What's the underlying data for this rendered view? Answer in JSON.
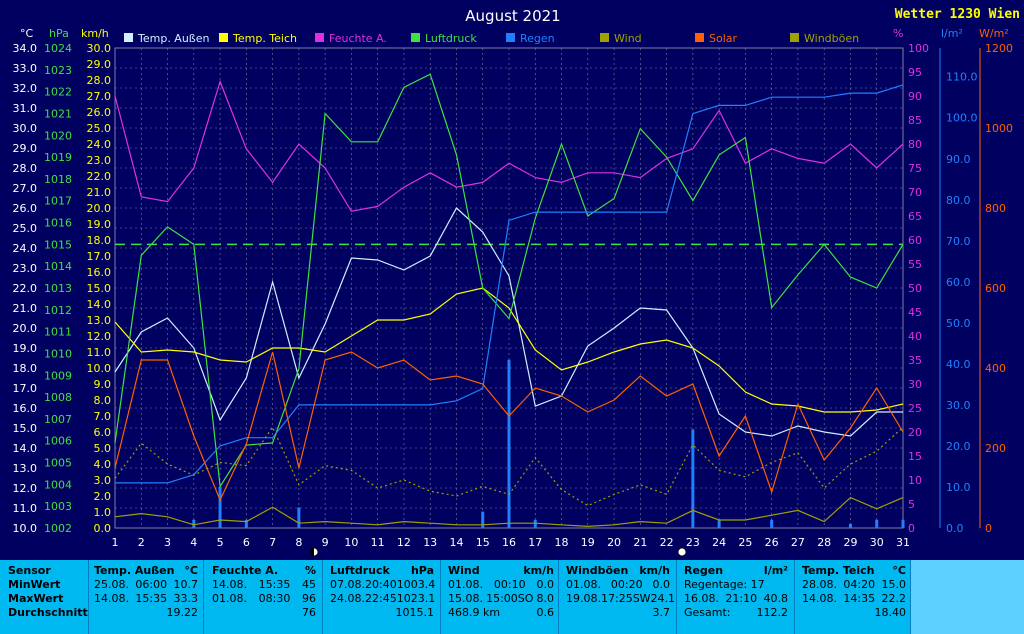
{
  "title": "August 2021",
  "station": "Wetter 1230 Wien",
  "units": {
    "temp": "°C",
    "press": "hPa",
    "wind": "km/h",
    "hum": "%",
    "rain": "l/m²",
    "solar": "W/m²"
  },
  "legend": [
    {
      "label": "Temp. Außen",
      "color": "#D0F0FF"
    },
    {
      "label": "Temp. Teich",
      "color": "#FFFF00"
    },
    {
      "label": "Feuchte A.",
      "color": "#E030E0"
    },
    {
      "label": "Luftdruck",
      "color": "#40E040"
    },
    {
      "label": "Regen",
      "color": "#2080FF"
    },
    {
      "label": "Wind",
      "color": "#A0A000"
    },
    {
      "label": "Solar",
      "color": "#FF6000"
    },
    {
      "label": "Windböen",
      "color": "#A0A000"
    }
  ],
  "chart_data": {
    "type": "line",
    "x": [
      1,
      2,
      3,
      4,
      5,
      6,
      7,
      8,
      9,
      10,
      11,
      12,
      13,
      14,
      15,
      16,
      17,
      18,
      19,
      20,
      21,
      22,
      23,
      24,
      25,
      26,
      27,
      28,
      29,
      30,
      31
    ],
    "axes": {
      "temp": {
        "min": 10.0,
        "max": 34.0,
        "step": 1.0,
        "decimals": 1
      },
      "press": {
        "min": 1002,
        "max": 1024,
        "step": 1
      },
      "wind": {
        "min": 0.0,
        "max": 30.0,
        "step": 1.0,
        "decimals": 1
      },
      "hum": {
        "min": 0,
        "max": 100,
        "step": 5
      },
      "rain": {
        "min": 0.0,
        "max": 110.0,
        "step": 10,
        "decimals": 1,
        "span": 117
      },
      "solar": {
        "min": 0,
        "max": 1200,
        "step": 200
      }
    },
    "reference_line": {
      "axis": "press",
      "value": 1015
    },
    "series": [
      {
        "name": "Temp. Außen",
        "axis": "temp",
        "color": "#D0F0FF",
        "values": [
          17.8,
          19.8,
          20.5,
          19.0,
          15.4,
          17.5,
          22.3,
          17.5,
          20.2,
          23.5,
          23.4,
          22.9,
          23.6,
          26.0,
          24.8,
          22.6,
          16.1,
          16.6,
          19.1,
          20.0,
          21.0,
          20.9,
          19.0,
          15.7,
          14.8,
          14.6,
          15.1,
          14.8,
          14.6,
          15.8,
          15.8
        ]
      },
      {
        "name": "Temp. Teich",
        "axis": "temp",
        "color": "#FFFF00",
        "values": [
          20.3,
          18.8,
          18.9,
          18.8,
          18.4,
          18.3,
          19.0,
          19.0,
          18.8,
          19.6,
          20.4,
          20.4,
          20.7,
          21.7,
          22.0,
          21.0,
          18.9,
          17.9,
          18.3,
          18.8,
          19.2,
          19.4,
          19.0,
          18.1,
          16.8,
          16.2,
          16.1,
          15.8,
          15.8,
          15.9,
          16.2
        ]
      },
      {
        "name": "Feuchte A.",
        "axis": "hum",
        "color": "#E030E0",
        "values": [
          90,
          69,
          68,
          75,
          93,
          79,
          72,
          80,
          75,
          66,
          67,
          71,
          74,
          71,
          72,
          76,
          73,
          72,
          74,
          74,
          73,
          77,
          79,
          87,
          76,
          79,
          77,
          76,
          80,
          75,
          80
        ]
      },
      {
        "name": "Luftdruck",
        "axis": "press",
        "color": "#40E040",
        "values": [
          1005.9,
          1014.5,
          1015.8,
          1015.0,
          1003.9,
          1005.8,
          1005.9,
          1009.3,
          1021.0,
          1019.7,
          1019.7,
          1022.2,
          1022.8,
          1019.1,
          1013.0,
          1011.6,
          1016.2,
          1019.6,
          1016.3,
          1017.1,
          1020.3,
          1019.0,
          1017.0,
          1019.1,
          1019.9,
          1012.1,
          1013.6,
          1015.0,
          1013.5,
          1013.0,
          1015.0
        ]
      },
      {
        "name": "Regen",
        "axis": "rain",
        "color": "#2080FF",
        "values": [
          11,
          11,
          11,
          13,
          20,
          22,
          22,
          30,
          30,
          30,
          30,
          30,
          30,
          31,
          34,
          75,
          77,
          77,
          77,
          77,
          77,
          77,
          101,
          103,
          103,
          105,
          105,
          105,
          106,
          106,
          108
        ]
      },
      {
        "name": "Solar",
        "axis": "solar",
        "color": "#FF6000",
        "values": [
          150,
          420,
          420,
          230,
          70,
          210,
          440,
          150,
          420,
          440,
          400,
          420,
          370,
          380,
          360,
          280,
          350,
          330,
          290,
          320,
          380,
          330,
          360,
          180,
          280,
          90,
          310,
          170,
          250,
          350,
          240
        ]
      },
      {
        "name": "Wind",
        "axis": "wind",
        "color": "#A0A000",
        "values": [
          0.7,
          0.9,
          0.7,
          0.2,
          0.5,
          0.4,
          1.3,
          0.3,
          0.4,
          0.3,
          0.2,
          0.4,
          0.3,
          0.2,
          0.2,
          0.3,
          0.3,
          0.2,
          0.1,
          0.2,
          0.4,
          0.3,
          1.1,
          0.5,
          0.5,
          0.8,
          1.1,
          0.4,
          1.9,
          1.2,
          1.9
        ]
      },
      {
        "name": "Windböen",
        "axis": "wind",
        "color": "#A0A000",
        "dashed": true,
        "values": [
          3.1,
          5.3,
          4.0,
          3.3,
          4.1,
          3.9,
          6.3,
          2.7,
          3.9,
          3.6,
          2.5,
          3.0,
          2.3,
          2.0,
          2.6,
          2.1,
          4.4,
          2.4,
          1.4,
          2.1,
          2.7,
          2.1,
          5.2,
          3.6,
          3.2,
          4.1,
          4.7,
          2.5,
          4.0,
          4.8,
          6.3
        ]
      }
    ],
    "rain_bars": {
      "axis": "rain",
      "values": [
        0,
        0,
        0,
        2,
        10,
        2,
        0,
        5,
        0,
        0,
        0,
        0,
        0,
        0,
        4,
        41,
        2,
        0,
        0,
        0,
        0,
        0,
        24,
        2,
        0,
        2,
        0,
        0,
        1,
        2,
        2
      ]
    }
  },
  "table": {
    "labels": {
      "sensor": "Sensor",
      "min": "MinWert",
      "max": "MaxWert",
      "avg": "Durchschnitt"
    },
    "temp_aussen": {
      "title": "Temp. Außen",
      "unit": "°C",
      "min_date": "25.08.",
      "min_time": "06:00",
      "min_val": "10.7",
      "max_date": "14.08.",
      "max_time": "15:35",
      "max_val": "33.3",
      "avg": "19.22"
    },
    "feuchte": {
      "title": "Feuchte A.",
      "unit": "%",
      "min_date": "14.08.",
      "min_time": "15:35",
      "min_val": "45",
      "max_date": "01.08.",
      "max_time": "08:30",
      "max_val": "96",
      "avg": "76"
    },
    "luftdruck": {
      "title": "Luftdruck",
      "unit": "hPa",
      "min_date": "07.08.",
      "min_time": "20:40",
      "min_val": "1003.4",
      "max_date": "24.08.",
      "max_time": "22:45",
      "max_val": "1023.1",
      "avg": "1015.1"
    },
    "wind": {
      "title": "Wind",
      "unit": "km/h",
      "min_date": "01.08.",
      "min_time": "00:10",
      "min_val": "0.0",
      "max_date": "15.08.",
      "max_time": "15:00",
      "max_dir": "SO",
      "max_val": "8.0",
      "avg_dist": "468.9 km",
      "avg": "0.6"
    },
    "windboeen": {
      "title": "Windböen",
      "unit": "km/h",
      "min_date": "01.08.",
      "min_time": "00:20",
      "min_val": "0.0",
      "max_date": "19.08.",
      "max_time": "17:25",
      "max_dir": "SW",
      "max_val": "24.1",
      "avg": "3.7"
    },
    "regen": {
      "title": "Regen",
      "unit": "l/m²",
      "regentage": "Regentage: 17",
      "max_date": "16.08.",
      "max_time": "21:10",
      "max_val": "40.8",
      "gesamt_label": "Gesamt:",
      "gesamt_val": "112.2"
    },
    "temp_teich": {
      "title": "Temp. Teich",
      "unit": "°C",
      "min_date": "28.08.",
      "min_time": "04:20",
      "min_val": "15.0",
      "max_date": "14.08.",
      "max_time": "14:35",
      "max_val": "22.2",
      "avg": "18.40"
    }
  }
}
